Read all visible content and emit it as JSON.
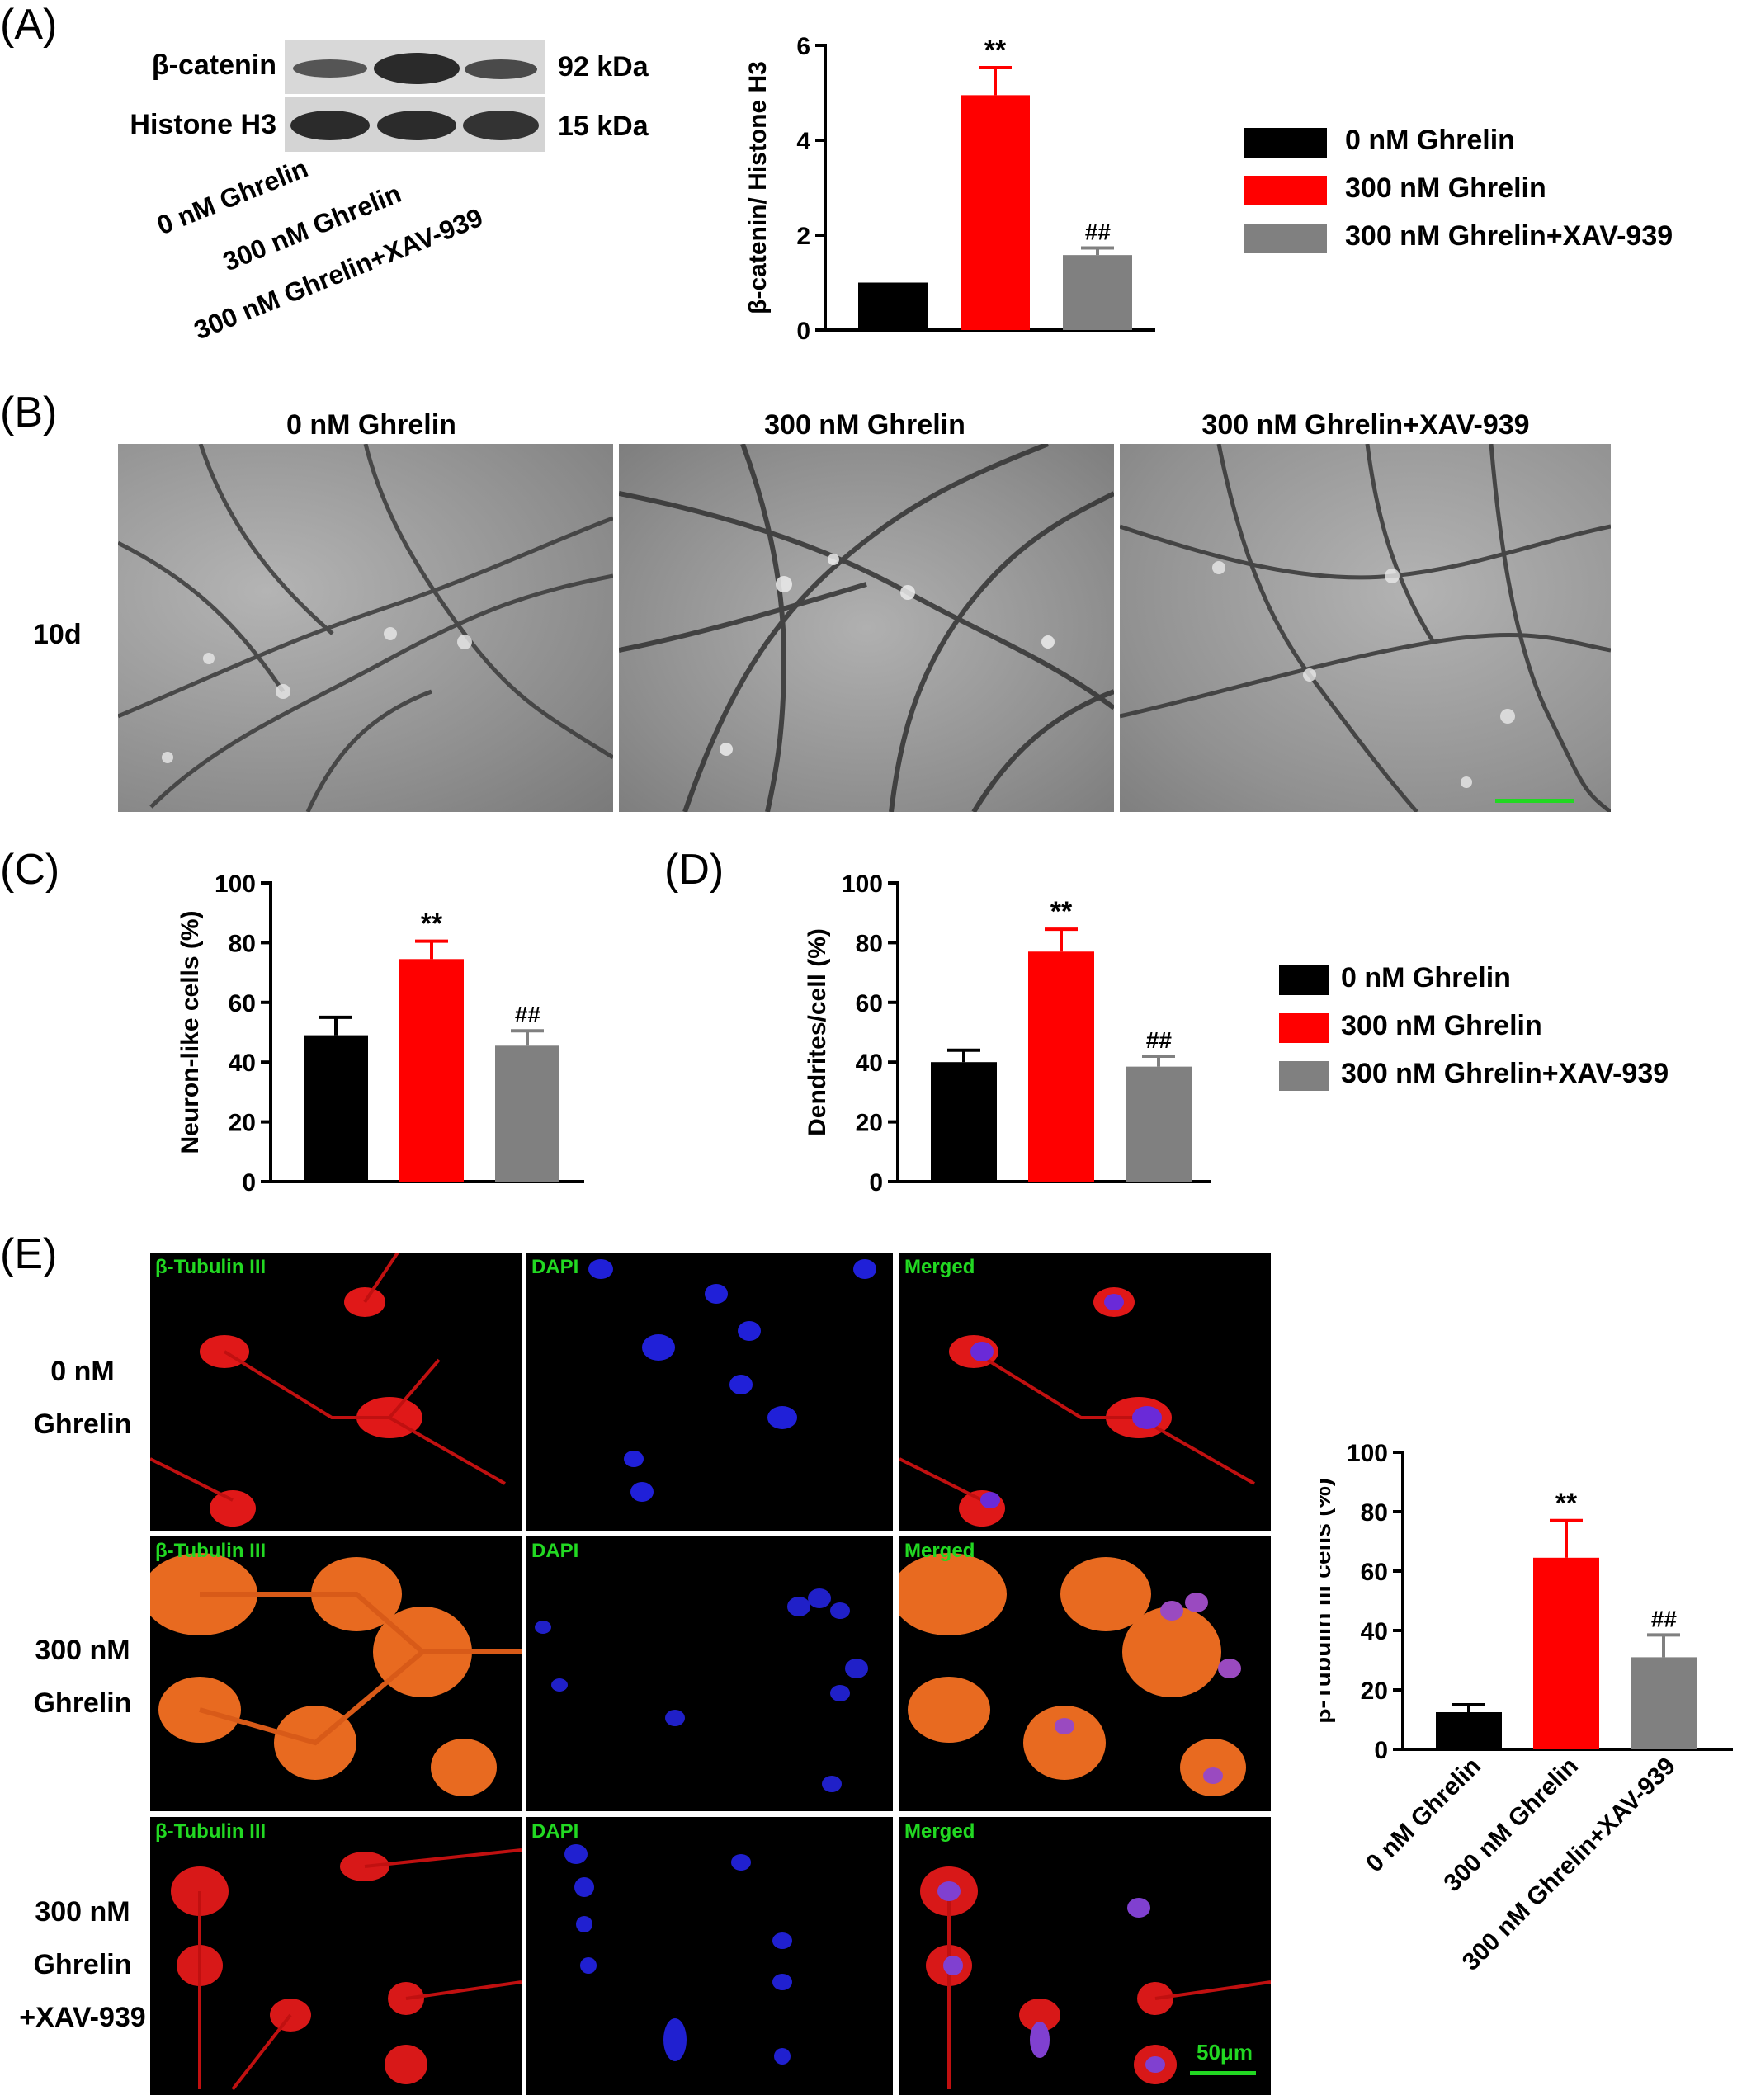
{
  "panels": {
    "A": {
      "label": "(A)",
      "blot": {
        "bands": [
          {
            "name": "β-catenin",
            "size": "92 kDa"
          },
          {
            "name": "Histone H3",
            "size": "15 kDa"
          }
        ],
        "lanes": [
          "0 nM Ghrelin",
          "300 nM Ghrelin",
          "300 nM Ghrelin+XAV-939"
        ]
      }
    },
    "B": {
      "label": "(B)",
      "columns": [
        "0 nM Ghrelin",
        "300 nM Ghrelin",
        "300 nM Ghrelin+XAV-939"
      ],
      "row_label": "10d"
    },
    "C": {
      "label": "(C)"
    },
    "D": {
      "label": "(D)"
    },
    "E": {
      "label": "(E)",
      "rows": [
        [
          "0 nM",
          "Ghrelin"
        ],
        [
          "300 nM",
          "Ghrelin"
        ],
        [
          "300 nM",
          "Ghrelin",
          "+XAV-939"
        ]
      ],
      "channels": [
        "β-Tubulin III",
        "DAPI",
        "Merged"
      ],
      "scale_bar": "50μm"
    }
  },
  "legend": {
    "entries": [
      {
        "label": "0 nM Ghrelin",
        "color": "#000000"
      },
      {
        "label": "300 nM Ghrelin",
        "color": "#ff0000"
      },
      {
        "label": "300 nM Ghrelin+XAV-939",
        "color": "#808080"
      }
    ]
  },
  "colors": {
    "control": "#000000",
    "ghrelin": "#ff0000",
    "xav": "#808080",
    "scale_bar": "#22d822",
    "channel_label": "#22d822"
  },
  "chart_data": [
    {
      "id": "A",
      "type": "bar",
      "categories": [
        "0 nM Ghrelin",
        "300 nM Ghrelin",
        "300 nM Ghrelin+XAV-939"
      ],
      "values": [
        1.0,
        4.95,
        1.58
      ],
      "errors": [
        0,
        0.58,
        0.15
      ],
      "annotations": [
        "",
        "**",
        "##"
      ],
      "ylabel": "β-catenin/ Histone H3",
      "ylim": [
        0,
        6
      ],
      "yticks": [
        0,
        2,
        4,
        6
      ],
      "show_xticklabels": false
    },
    {
      "id": "C",
      "type": "bar",
      "categories": [
        "0 nM Ghrelin",
        "300 nM Ghrelin",
        "300 nM Ghrelin+XAV-939"
      ],
      "values": [
        49,
        74.5,
        45.5
      ],
      "errors": [
        6,
        6,
        5
      ],
      "annotations": [
        "",
        "**",
        "##"
      ],
      "ylabel": "Neuron-like cells (%)",
      "ylim": [
        0,
        100
      ],
      "yticks": [
        0,
        20,
        40,
        60,
        80,
        100
      ],
      "show_xticklabels": false
    },
    {
      "id": "D",
      "type": "bar",
      "categories": [
        "0 nM Ghrelin",
        "300 nM Ghrelin",
        "300 nM Ghrelin+XAV-939"
      ],
      "values": [
        40,
        77,
        38.5
      ],
      "errors": [
        4,
        7.5,
        3.5
      ],
      "annotations": [
        "",
        "**",
        "##"
      ],
      "ylabel": "Dendrites/cell (%)",
      "ylim": [
        0,
        100
      ],
      "yticks": [
        0,
        20,
        40,
        60,
        80,
        100
      ],
      "show_xticklabels": false
    },
    {
      "id": "E",
      "type": "bar",
      "categories": [
        "0 nM Ghrelin",
        "300 nM Ghrelin",
        "300 nM Ghrelin+XAV-939"
      ],
      "values": [
        12.5,
        64.5,
        31
      ],
      "errors": [
        2.5,
        12.5,
        7.5
      ],
      "annotations": [
        "",
        "**",
        "##"
      ],
      "ylabel": "β-Tubulin III cells (%)",
      "ylim": [
        0,
        100
      ],
      "yticks": [
        0,
        20,
        40,
        60,
        80,
        100
      ],
      "show_xticklabels": true
    }
  ]
}
